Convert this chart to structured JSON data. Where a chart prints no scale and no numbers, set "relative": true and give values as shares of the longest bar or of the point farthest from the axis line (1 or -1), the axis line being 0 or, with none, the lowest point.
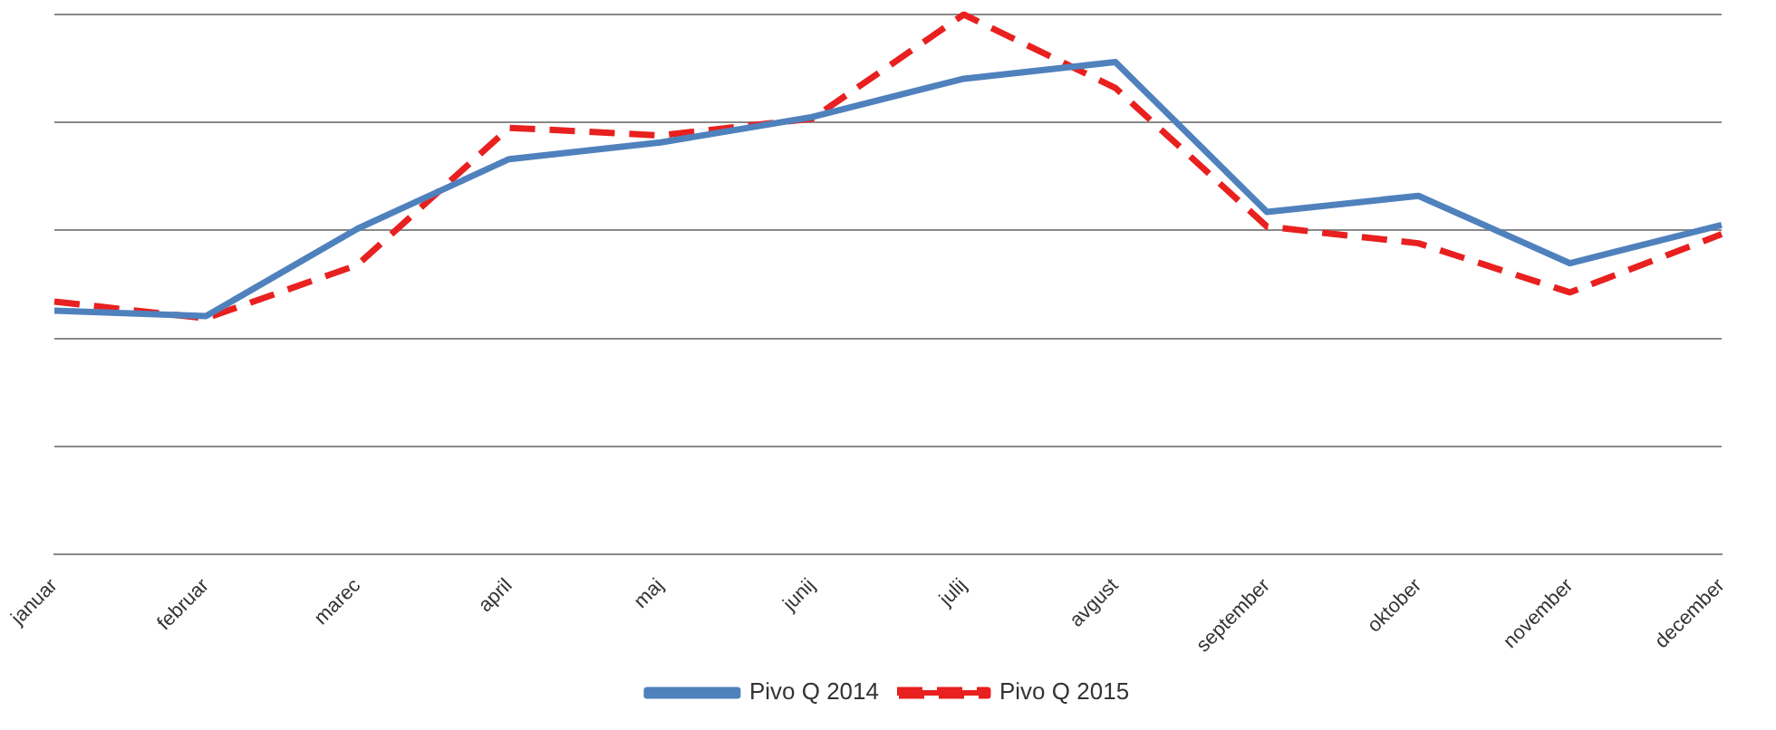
{
  "chart_data": {
    "type": "line",
    "relative": true,
    "grid": "y",
    "legend": "bottom",
    "marker": "none",
    "categories": [
      "januar",
      "februar",
      "marec",
      "april",
      "maj",
      "junij",
      "julij",
      "avgust",
      "september",
      "oktober",
      "november",
      "december"
    ],
    "series": [
      {
        "name": "Pivo Q 2014",
        "color": "#4f81bd",
        "line_style": "solid",
        "values": [
          0.451,
          0.441,
          0.603,
          0.732,
          0.763,
          0.81,
          0.881,
          0.912,
          0.634,
          0.664,
          0.539,
          0.61
        ]
      },
      {
        "name": "Pivo Q 2015",
        "color": "#e8201f",
        "line_style": "dashed",
        "values": [
          0.468,
          0.437,
          0.536,
          0.79,
          0.776,
          0.807,
          1,
          0.864,
          0.607,
          0.576,
          0.485,
          0.593
        ]
      }
    ]
  }
}
